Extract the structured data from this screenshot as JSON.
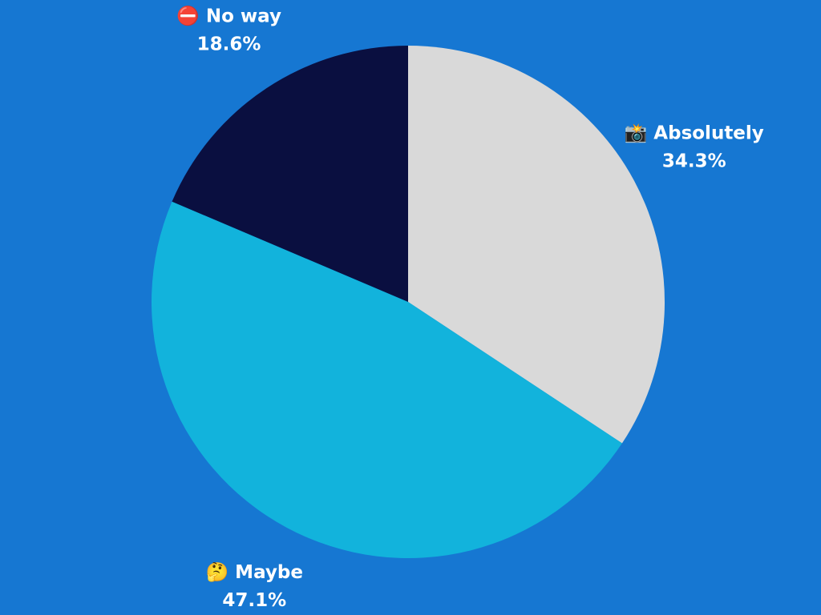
{
  "chart_data": {
    "type": "pie",
    "categories": [
      "📸 Absolutely",
      "🤔 Maybe",
      "⛔ No way"
    ],
    "values": [
      34.3,
      47.1,
      18.6
    ],
    "value_labels": [
      "34.3%",
      "47.1%",
      "18.6%"
    ],
    "colors": [
      "#d9d9d9",
      "#12b3dc",
      "#0a0f40"
    ],
    "start": "top",
    "direction": "clockwise"
  }
}
